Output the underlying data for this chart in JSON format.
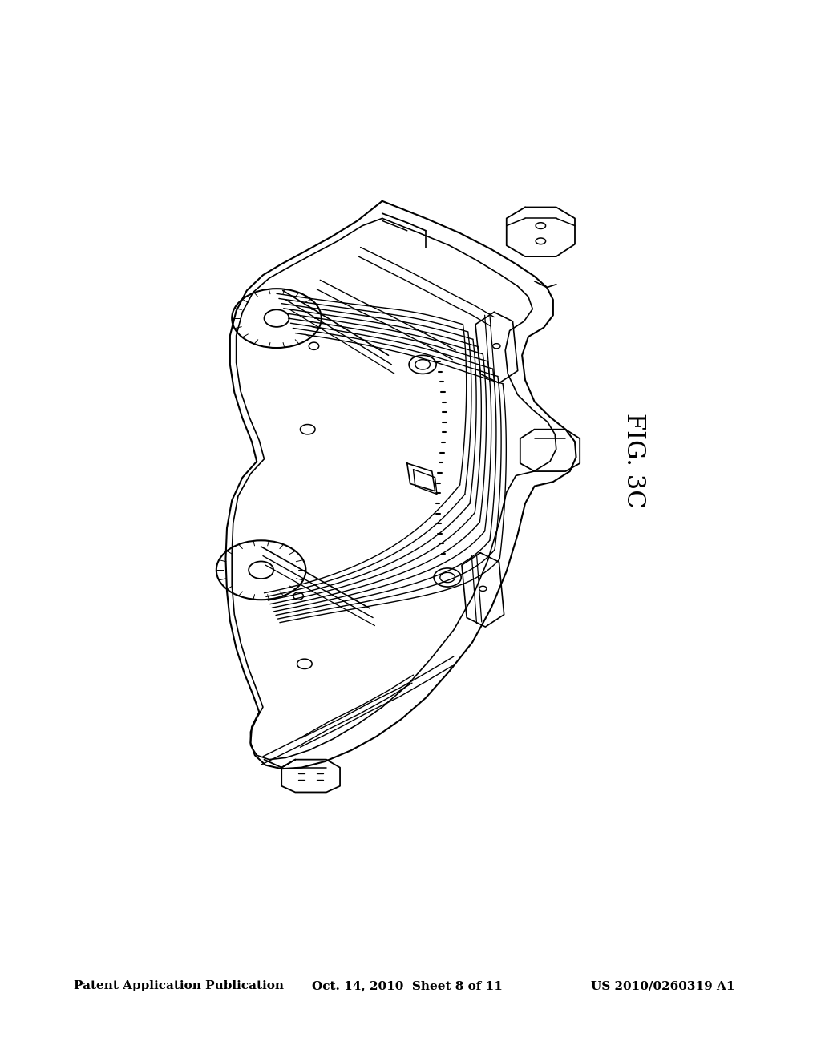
{
  "background_color": "#ffffff",
  "header_left": "Patent Application Publication",
  "header_center": "Oct. 14, 2010  Sheet 8 of 11",
  "header_right": "US 2010/0260319 A1",
  "fig_label": "FIG. 3C",
  "fig_label_fontsize": 22,
  "header_fontsize": 11,
  "line_color": "#000000",
  "line_width": 1.2
}
